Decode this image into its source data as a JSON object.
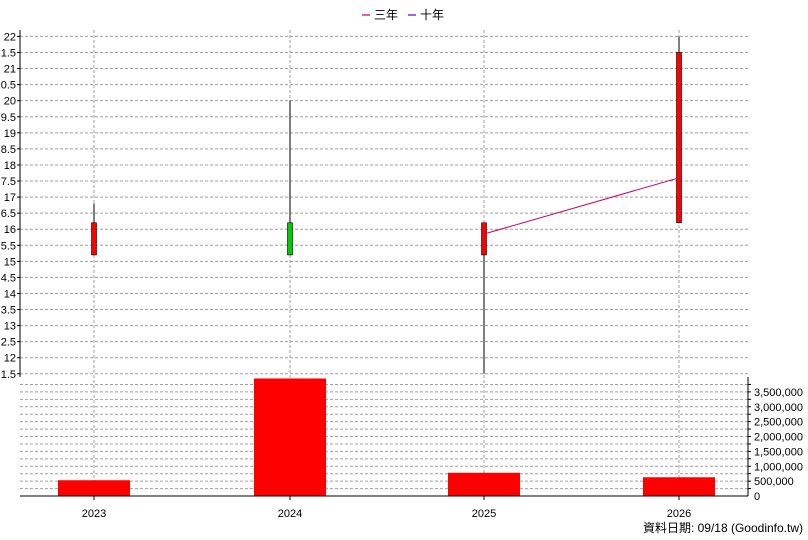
{
  "chart_data": {
    "type": "candlestick",
    "legend": [
      {
        "name": "三年",
        "color": "#cc0066"
      },
      {
        "name": "十年",
        "color": "#6600cc"
      }
    ],
    "legend_position": "top-center",
    "categories": [
      "2023",
      "2024",
      "2025",
      "2026"
    ],
    "price_axis": {
      "ylim": [
        11.4,
        22.2
      ],
      "ticks": [
        "1.5",
        "12",
        "2.5",
        "13",
        "3.5",
        "14",
        "4.5",
        "15",
        "5.5",
        "16",
        "6.5",
        "17",
        "7.5",
        "18",
        "8.5",
        "19",
        "9.5",
        "20",
        "0.5",
        "21",
        "1.5",
        "22"
      ],
      "tick_values": [
        11.5,
        12,
        12.5,
        13,
        13.5,
        14,
        14.5,
        15,
        15.5,
        16,
        16.5,
        17,
        17.5,
        18,
        18.5,
        19,
        19.5,
        20,
        20.5,
        21,
        21.5,
        22
      ],
      "position": "left"
    },
    "candles": [
      {
        "x": "2023",
        "open": 16.2,
        "close": 15.2,
        "high": 16.8,
        "low": 15.2,
        "color": "#ff0000"
      },
      {
        "x": "2024",
        "open": 15.2,
        "close": 16.2,
        "high": 20.0,
        "low": 15.2,
        "color": "#00cc00"
      },
      {
        "x": "2025",
        "open": 16.2,
        "close": 15.2,
        "high": 16.2,
        "low": 11.5,
        "color": "#ff0000"
      },
      {
        "x": "2026",
        "open": 21.5,
        "close": 16.2,
        "high": 22.0,
        "low": 16.2,
        "color": "#ff0000"
      }
    ],
    "series": [
      {
        "name": "三年",
        "color": "#cc0066",
        "points": [
          {
            "x": "2025",
            "y": 15.85
          },
          {
            "x": "2026",
            "y": 17.6
          }
        ]
      }
    ],
    "volume_axis": {
      "ylim": [
        0,
        4000000
      ],
      "ticks": [
        "0",
        "500,000",
        "1,000,000",
        "1,500,000",
        "2,000,000",
        "2,500,000",
        "3,000,000",
        "3,500,000"
      ],
      "tick_values": [
        0,
        500000,
        1000000,
        1500000,
        2000000,
        2500000,
        3000000,
        3500000
      ],
      "position": "right"
    },
    "volume": [
      {
        "x": "2023",
        "value": 530000
      },
      {
        "x": "2024",
        "value": 3950000
      },
      {
        "x": "2025",
        "value": 780000
      },
      {
        "x": "2026",
        "value": 630000
      }
    ],
    "grid": true,
    "footer": "資料日期: 09/18  (Goodinfo.tw)"
  },
  "colors": {
    "grid": "#a0a0a0",
    "volume_bar": "#ff0000",
    "wick": "#000000"
  }
}
